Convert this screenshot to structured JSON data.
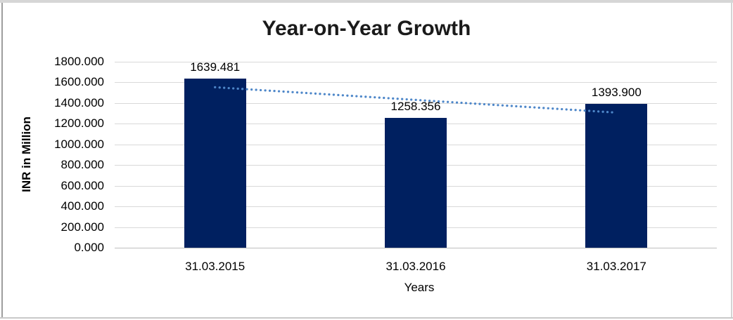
{
  "frame": {
    "background": "#ffffff"
  },
  "chart_data": {
    "type": "bar",
    "title": "Year-on-Year Growth",
    "xlabel": "Years",
    "ylabel": "INR in Million",
    "categories": [
      "31.03.2015",
      "31.03.2016",
      "31.03.2017"
    ],
    "values": [
      1639.481,
      1258.356,
      1393.9
    ],
    "data_labels": [
      "1639.481",
      "1258.356",
      "1393.900"
    ],
    "ylim": [
      0,
      1800
    ],
    "yticks": {
      "labels": [
        "1800.000",
        "1600.000",
        "1400.000",
        "1200.000",
        "1000.000",
        "800.000",
        "600.000",
        "400.000",
        "200.000",
        "0.000"
      ],
      "values": [
        1800,
        1600,
        1400,
        1200,
        1000,
        800,
        600,
        400,
        200,
        0
      ]
    },
    "grid": true,
    "legend": "none",
    "trendline": {
      "type": "linear",
      "style": "dotted",
      "values": [
        1553.37,
        1430.58,
        1307.79
      ]
    },
    "colors": {
      "bar": "#002060",
      "trendline": "#4e87c9",
      "gridline": "#d9d9d9",
      "axis_line": "#bfbfbf",
      "title": "#1a1a1a",
      "text": "#000000"
    }
  }
}
